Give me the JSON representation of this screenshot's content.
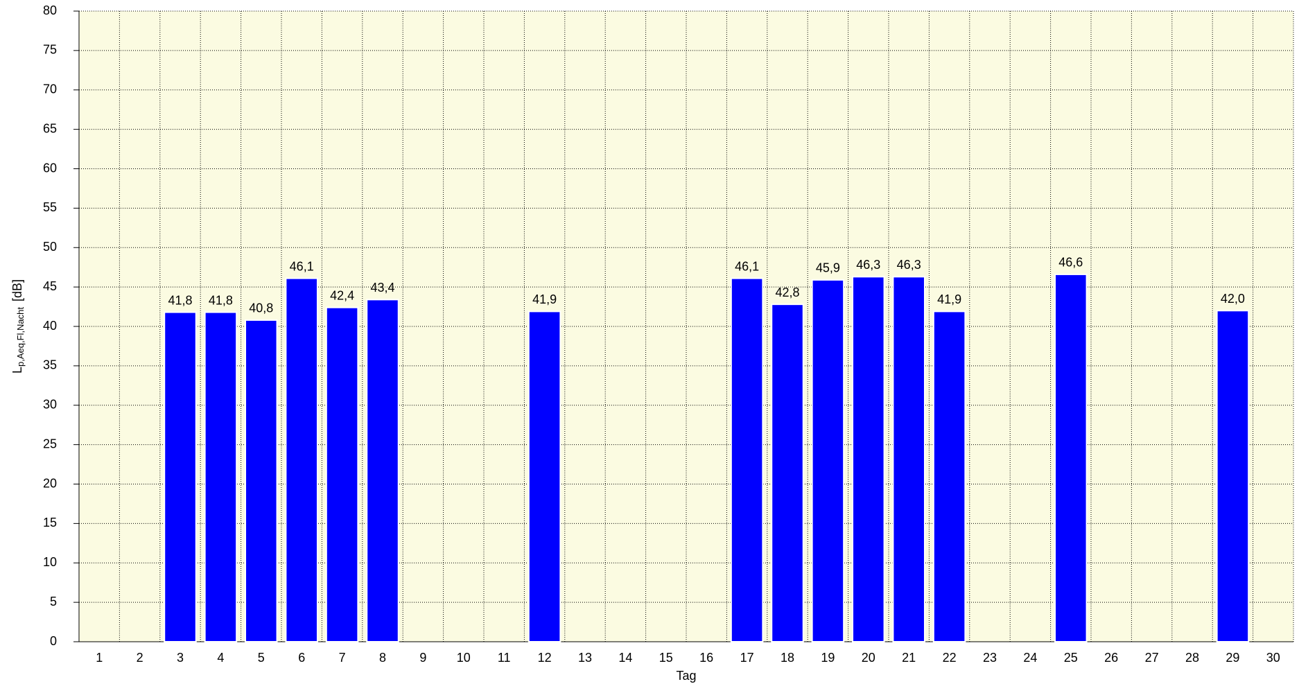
{
  "chart_data": {
    "type": "bar",
    "ylabel": {
      "main": "L",
      "sub": "p,Aeq,Fl,Nacht",
      "unit": "[dB]"
    },
    "xlabel": "Tag",
    "categories": [
      "1",
      "2",
      "3",
      "4",
      "5",
      "6",
      "7",
      "8",
      "9",
      "10",
      "11",
      "12",
      "13",
      "14",
      "15",
      "16",
      "17",
      "18",
      "19",
      "20",
      "21",
      "22",
      "23",
      "24",
      "25",
      "26",
      "27",
      "28",
      "29",
      "30"
    ],
    "values": [
      null,
      null,
      41.8,
      41.8,
      40.8,
      46.1,
      42.4,
      43.4,
      null,
      null,
      null,
      41.9,
      null,
      null,
      null,
      null,
      46.1,
      42.8,
      45.9,
      46.3,
      46.3,
      41.9,
      null,
      null,
      46.6,
      null,
      null,
      null,
      42.0,
      null
    ],
    "value_labels": [
      null,
      null,
      "41,8",
      "41,8",
      "40,8",
      "46,1",
      "42,4",
      "43,4",
      null,
      null,
      null,
      "41,9",
      null,
      null,
      null,
      null,
      "46,1",
      "42,8",
      "45,9",
      "46,3",
      "46,3",
      "41,9",
      null,
      null,
      "46,6",
      null,
      null,
      null,
      "42,0",
      null
    ],
    "color": "#0000ff",
    "ylim": [
      0,
      80
    ],
    "yticks": [
      0,
      5,
      10,
      15,
      20,
      25,
      30,
      35,
      40,
      45,
      50,
      55,
      60,
      65,
      70,
      75,
      80
    ],
    "grid": true
  }
}
